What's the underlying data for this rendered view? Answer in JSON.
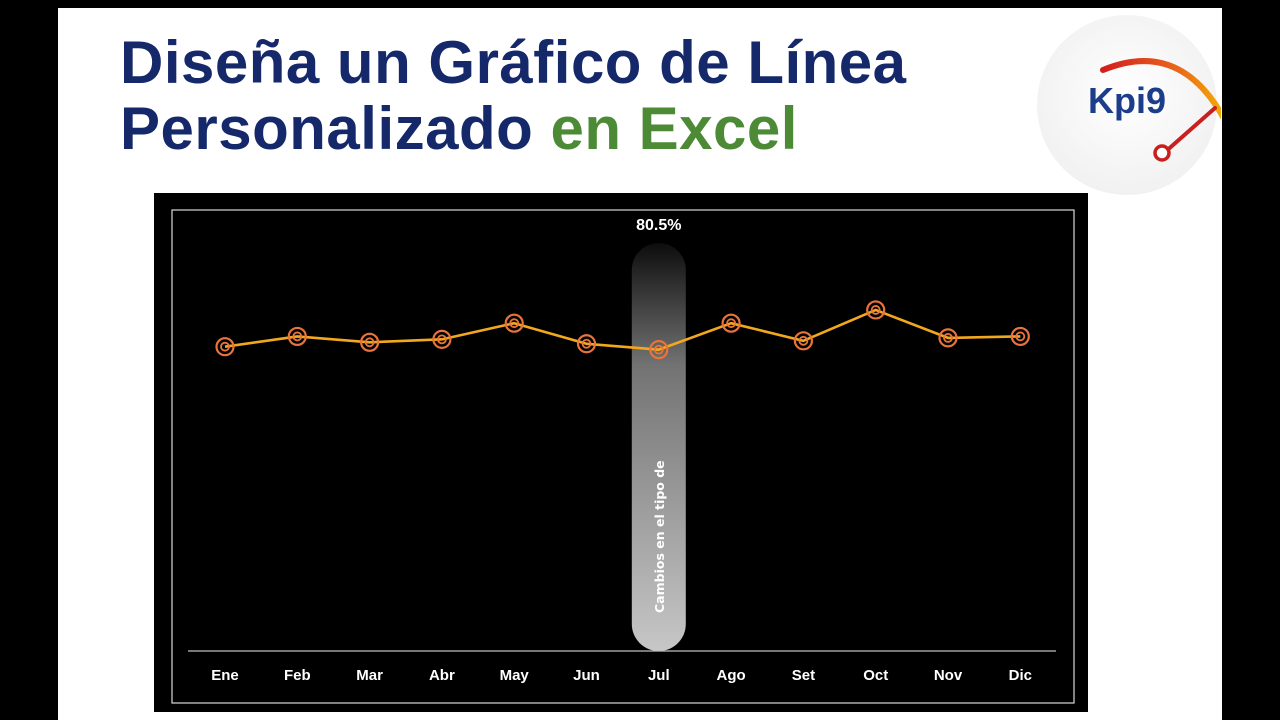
{
  "title": {
    "line1": "Diseña un Gráfico de Línea",
    "line2_main": "Personalizado",
    "line2_accent": "en Excel"
  },
  "logo": {
    "text": "Kpi9",
    "icon": "gauge-needle-icon",
    "colors": {
      "text": "#1c3d8a",
      "arc_red": "#d21e1e",
      "arc_yellow": "#f5c400"
    }
  },
  "colors": {
    "title": "#14286a",
    "title_accent": "#4c8a35",
    "chart_background": "#000000",
    "line": "#f2a81d",
    "marker": "#e8743b",
    "highlight_bar": "#ffffff",
    "axis": "#cccccc",
    "text": "#ffffff"
  },
  "chart_data": {
    "type": "line",
    "categories": [
      "Ene",
      "Feb",
      "Mar",
      "Abr",
      "May",
      "Jun",
      "Jul",
      "Ago",
      "Set",
      "Oct",
      "Nov",
      "Dic"
    ],
    "series": [
      {
        "values": [
          80.7,
          81.4,
          81.0,
          81.2,
          82.3,
          80.9,
          80.5,
          82.3,
          81.1,
          83.2,
          81.3,
          81.4
        ]
      }
    ],
    "highlight": {
      "category": "Jul",
      "value_label": "80.5%",
      "bar_text": "Cambios en el tipo de"
    },
    "ylim": [
      60,
      90
    ],
    "grid": false,
    "legend": "none"
  }
}
